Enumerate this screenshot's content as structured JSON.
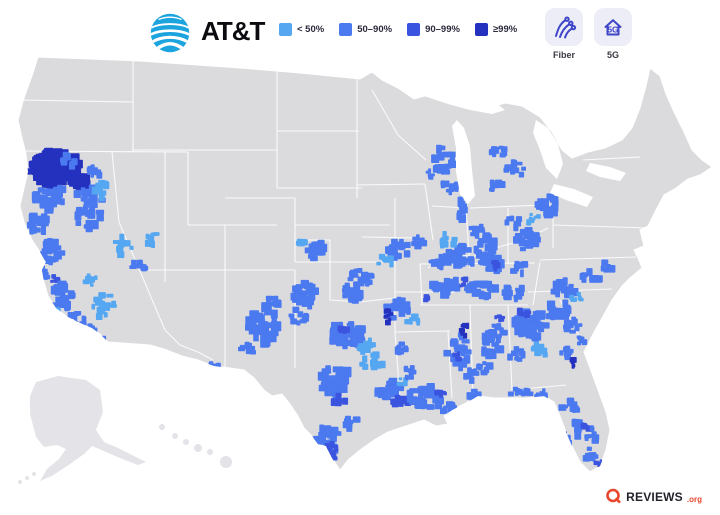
{
  "header": {
    "brand": {
      "name": "AT&T",
      "logo_icon": "att-globe-icon",
      "logo_color": "#1BA4DE"
    },
    "toggles": [
      {
        "label": "Fiber",
        "icon": "fiber-strands-icon"
      },
      {
        "label": "5G",
        "icon": "5g-home-icon"
      }
    ],
    "toggle_icon_color": "#3F45C8"
  },
  "map": {
    "type": "choropleth",
    "region": "United States",
    "metric": "AT&T fiber availability by area",
    "base_land_color": "#DBDBDE",
    "alaska_hawaii_color": "#E4E4E8",
    "border_color": "#FFFFFF",
    "levels": [
      {
        "label": "< 50%",
        "color": "#55A7F2"
      },
      {
        "label": "50–90%",
        "color": "#4B79EF"
      },
      {
        "label": "90–99%",
        "color": "#3B54DF"
      },
      {
        "label": "≥99%",
        "color": "#2430BE"
      }
    ],
    "areas": [
      {
        "region": "Northern California (Redding / Shasta area)",
        "coverage": "≥99%"
      },
      {
        "region": "California Central Valley, Bay Area, Los Angeles, San Diego",
        "coverage": "50–90% with < 50% patches"
      },
      {
        "region": "Western and southern Nevada (Reno, Las Vegas)",
        "coverage": "< 50% to 50–90%"
      },
      {
        "region": "Southwestern Arizona (Yuma area)",
        "coverage": "50–90%"
      },
      {
        "region": "Eastern New Mexico",
        "coverage": "50–90%"
      },
      {
        "region": "Texas (Dallas, Austin, San Antonio, Houston, Rio Grande Valley)",
        "coverage": "50–90% with 90–99% pockets"
      },
      {
        "region": "Oklahoma and southern Kansas",
        "coverage": "50–90%"
      },
      {
        "region": "Missouri and Arkansas (small ≥99% pocket near Little Rock)",
        "coverage": "50–90%"
      },
      {
        "region": "Louisiana and Mississippi",
        "coverage": "50–90% with 90–99% pockets"
      },
      {
        "region": "Alabama (≥99% pocket near west-central AL)",
        "coverage": "50–90%"
      },
      {
        "region": "Tennessee and Kentucky",
        "coverage": "50–90%"
      },
      {
        "region": "Georgia (≥99% pocket near Savannah), South Carolina, North Carolina",
        "coverage": "50–90%"
      },
      {
        "region": "Florida along both coasts",
        "coverage": "50–90%"
      },
      {
        "region": "Wisconsin, Michigan, Indiana, Ohio, Chicago area",
        "coverage": "50–90%"
      },
      {
        "region": "Pacific Northwest, Mountain West, northern Plains, Northeast, Alaska, Hawaii",
        "coverage": "none shown"
      }
    ],
    "clusters_format": [
      "cx",
      "cy",
      "rx",
      "ry",
      "level_1to4",
      "count",
      "dot_size"
    ],
    "clusters": [
      [
        56,
        168,
        24,
        17,
        4,
        120,
        7
      ],
      [
        78,
        181,
        10,
        7,
        4,
        24,
        6
      ],
      [
        70,
        160,
        8,
        6,
        2,
        10,
        5
      ],
      [
        95,
        172,
        7,
        6,
        2,
        8,
        5
      ],
      [
        45,
        200,
        11,
        12,
        2,
        20,
        6
      ],
      [
        88,
        207,
        15,
        22,
        2,
        30,
        6
      ],
      [
        101,
        190,
        9,
        9,
        1,
        10,
        5
      ],
      [
        60,
        195,
        8,
        8,
        2,
        12,
        5
      ],
      [
        38,
        225,
        9,
        11,
        2,
        16,
        6
      ],
      [
        52,
        250,
        11,
        13,
        2,
        22,
        6
      ],
      [
        42,
        276,
        8,
        8,
        2,
        12,
        5
      ],
      [
        55,
        278,
        6,
        6,
        3,
        6,
        4
      ],
      [
        63,
        296,
        11,
        14,
        2,
        22,
        6
      ],
      [
        57,
        316,
        6,
        8,
        1,
        10,
        5
      ],
      [
        78,
        320,
        9,
        9,
        2,
        14,
        5
      ],
      [
        70,
        335,
        6,
        6,
        2,
        8,
        5
      ],
      [
        88,
        332,
        9,
        6,
        2,
        12,
        5
      ],
      [
        100,
        344,
        6,
        5,
        2,
        8,
        5
      ],
      [
        104,
        306,
        11,
        13,
        1,
        16,
        5
      ],
      [
        92,
        282,
        7,
        7,
        1,
        8,
        5
      ],
      [
        125,
        246,
        10,
        10,
        1,
        10,
        5
      ],
      [
        139,
        265,
        7,
        6,
        2,
        8,
        5
      ],
      [
        152,
        238,
        8,
        8,
        1,
        8,
        5
      ],
      [
        213,
        368,
        7,
        5,
        2,
        9,
        5
      ],
      [
        262,
        325,
        15,
        19,
        2,
        30,
        7
      ],
      [
        247,
        350,
        7,
        6,
        2,
        8,
        5
      ],
      [
        273,
        302,
        7,
        6,
        2,
        8,
        5
      ],
      [
        305,
        295,
        13,
        13,
        2,
        24,
        6
      ],
      [
        300,
        316,
        9,
        9,
        2,
        12,
        5
      ],
      [
        320,
        252,
        11,
        9,
        2,
        16,
        6
      ],
      [
        303,
        243,
        6,
        5,
        1,
        6,
        5
      ],
      [
        352,
        290,
        13,
        10,
        2,
        20,
        6
      ],
      [
        368,
        280,
        7,
        6,
        2,
        9,
        5
      ],
      [
        360,
        278,
        12,
        9,
        2,
        14,
        5
      ],
      [
        398,
        250,
        13,
        9,
        2,
        18,
        6
      ],
      [
        417,
        243,
        7,
        6,
        2,
        9,
        5
      ],
      [
        385,
        262,
        7,
        6,
        1,
        7,
        5
      ],
      [
        398,
        308,
        13,
        11,
        2,
        20,
        6
      ],
      [
        388,
        315,
        4,
        8,
        4,
        8,
        4
      ],
      [
        413,
        320,
        6,
        5,
        1,
        6,
        5
      ],
      [
        348,
        335,
        17,
        13,
        2,
        30,
        7
      ],
      [
        344,
        330,
        5,
        4,
        3,
        6,
        4
      ],
      [
        367,
        346,
        9,
        7,
        1,
        10,
        5
      ],
      [
        335,
        380,
        15,
        15,
        2,
        28,
        7
      ],
      [
        340,
        398,
        7,
        7,
        3,
        10,
        5
      ],
      [
        372,
        362,
        11,
        9,
        1,
        13,
        5
      ],
      [
        390,
        390,
        13,
        9,
        2,
        20,
        6
      ],
      [
        398,
        402,
        10,
        6,
        3,
        10,
        5
      ],
      [
        402,
        381,
        5,
        4,
        1,
        5,
        4
      ],
      [
        328,
        442,
        12,
        16,
        2,
        26,
        6
      ],
      [
        330,
        452,
        7,
        9,
        3,
        12,
        5
      ],
      [
        352,
        424,
        7,
        6,
        2,
        8,
        5
      ],
      [
        315,
        440,
        4,
        4,
        2,
        5,
        4
      ],
      [
        402,
        348,
        7,
        6,
        2,
        8,
        5
      ],
      [
        425,
        397,
        17,
        11,
        2,
        26,
        6
      ],
      [
        442,
        391,
        6,
        4,
        3,
        6,
        4
      ],
      [
        409,
        372,
        7,
        6,
        2,
        8,
        5
      ],
      [
        446,
        408,
        9,
        5,
        2,
        10,
        5
      ],
      [
        458,
        350,
        11,
        18,
        2,
        24,
        6
      ],
      [
        470,
        374,
        7,
        7,
        2,
        9,
        5
      ],
      [
        466,
        330,
        5,
        6,
        4,
        7,
        4
      ],
      [
        459,
        356,
        5,
        4,
        3,
        5,
        4
      ],
      [
        492,
        340,
        13,
        18,
        2,
        28,
        6
      ],
      [
        500,
        318,
        5,
        4,
        3,
        6,
        4
      ],
      [
        484,
        367,
        7,
        6,
        2,
        8,
        5
      ],
      [
        472,
        394,
        6,
        5,
        2,
        7,
        5
      ],
      [
        445,
        286,
        15,
        9,
        2,
        22,
        6
      ],
      [
        480,
        290,
        15,
        8,
        2,
        22,
        6
      ],
      [
        514,
        292,
        11,
        7,
        2,
        14,
        5
      ],
      [
        425,
        296,
        4,
        5,
        3,
        5,
        4
      ],
      [
        462,
        282,
        5,
        4,
        3,
        5,
        4
      ],
      [
        460,
        256,
        15,
        11,
        2,
        24,
        6
      ],
      [
        494,
        262,
        13,
        8,
        2,
        16,
        6
      ],
      [
        519,
        268,
        9,
        7,
        2,
        10,
        5
      ],
      [
        438,
        262,
        7,
        6,
        2,
        8,
        5
      ],
      [
        530,
        325,
        18,
        14,
        2,
        32,
        7
      ],
      [
        524,
        312,
        6,
        4,
        3,
        7,
        4
      ],
      [
        541,
        350,
        9,
        7,
        1,
        10,
        5
      ],
      [
        515,
        355,
        8,
        7,
        2,
        9,
        5
      ],
      [
        565,
        352,
        7,
        6,
        2,
        8,
        5
      ],
      [
        571,
        362,
        4,
        5,
        4,
        6,
        4
      ],
      [
        558,
        310,
        12,
        9,
        2,
        16,
        6
      ],
      [
        573,
        325,
        8,
        7,
        2,
        9,
        5
      ],
      [
        580,
        340,
        5,
        5,
        2,
        6,
        4
      ],
      [
        565,
        288,
        13,
        7,
        2,
        16,
        6
      ],
      [
        592,
        276,
        11,
        6,
        2,
        12,
        5
      ],
      [
        607,
        266,
        7,
        5,
        2,
        8,
        5
      ],
      [
        577,
        297,
        7,
        4,
        1,
        6,
        4
      ],
      [
        520,
        392,
        11,
        4,
        2,
        10,
        5
      ],
      [
        540,
        394,
        7,
        4,
        2,
        8,
        4
      ],
      [
        569,
        408,
        8,
        8,
        2,
        11,
        5
      ],
      [
        577,
        427,
        6,
        9,
        2,
        11,
        5
      ],
      [
        565,
        441,
        5,
        8,
        2,
        9,
        5
      ],
      [
        591,
        439,
        5,
        11,
        2,
        12,
        5
      ],
      [
        585,
        428,
        4,
        4,
        3,
        5,
        4
      ],
      [
        591,
        457,
        6,
        6,
        2,
        9,
        5
      ],
      [
        599,
        462,
        3,
        4,
        3,
        5,
        4
      ],
      [
        443,
        160,
        11,
        13,
        2,
        18,
        6
      ],
      [
        450,
        186,
        9,
        7,
        2,
        11,
        5
      ],
      [
        430,
        175,
        6,
        5,
        2,
        6,
        4
      ],
      [
        460,
        211,
        4,
        13,
        2,
        12,
        5
      ],
      [
        447,
        240,
        9,
        7,
        1,
        9,
        5
      ],
      [
        444,
        262,
        7,
        7,
        2,
        9,
        5
      ],
      [
        500,
        150,
        9,
        8,
        2,
        10,
        5
      ],
      [
        515,
        171,
        9,
        9,
        2,
        12,
        5
      ],
      [
        496,
        186,
        7,
        6,
        2,
        8,
        5
      ],
      [
        548,
        206,
        11,
        11,
        2,
        18,
        6
      ],
      [
        532,
        218,
        7,
        5,
        1,
        7,
        4
      ],
      [
        484,
        246,
        11,
        11,
        2,
        16,
        6
      ],
      [
        477,
        231,
        7,
        5,
        2,
        8,
        5
      ],
      [
        494,
        267,
        6,
        5,
        3,
        6,
        4
      ],
      [
        526,
        240,
        12,
        10,
        2,
        18,
        6
      ],
      [
        513,
        222,
        7,
        6,
        2,
        8,
        5
      ]
    ]
  },
  "footer": {
    "attribution_brand": "REVIEWS",
    "attribution_suffix": ".org",
    "attribution_icon": "reviews-q-icon",
    "attribution_color": "#E8472B"
  }
}
